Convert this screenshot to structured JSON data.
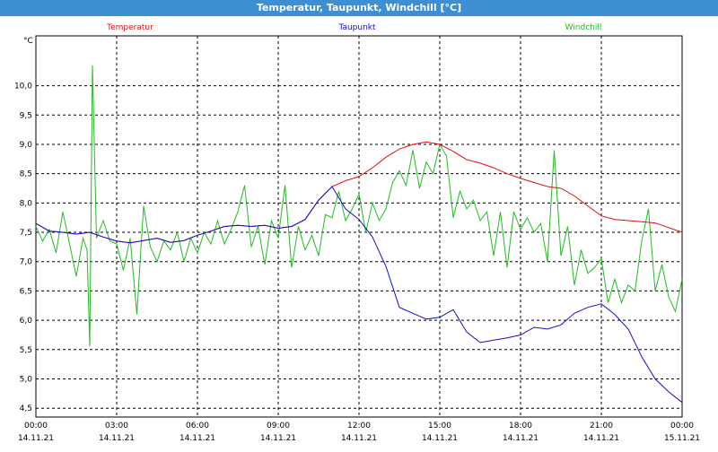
{
  "window": {
    "title": "Temperatur, Taupunkt, Windchill [°C]"
  },
  "chart_data": {
    "type": "line",
    "title": "Temperatur, Taupunkt, Windchill [°C]",
    "ylabel": "°C",
    "xlabel": "",
    "ylim": [
      4.35,
      10.85
    ],
    "xlim": [
      0,
      24
    ],
    "grid": true,
    "legend_placement": "top",
    "y_ticks": [
      "4,5",
      "5,0",
      "5,5",
      "6,0",
      "6,5",
      "7,0",
      "7,5",
      "8,0",
      "8,5",
      "9,0",
      "9,5",
      "10,0"
    ],
    "y_tick_values": [
      4.5,
      5.0,
      5.5,
      6.0,
      6.5,
      7.0,
      7.5,
      8.0,
      8.5,
      9.0,
      9.5,
      10.0
    ],
    "x_ticks": [
      {
        "time": "00:00",
        "date": "14.11.21",
        "value": 0
      },
      {
        "time": "03:00",
        "date": "14.11.21",
        "value": 3
      },
      {
        "time": "06:00",
        "date": "14.11.21",
        "value": 6
      },
      {
        "time": "09:00",
        "date": "14.11.21",
        "value": 9
      },
      {
        "time": "12:00",
        "date": "14.11.21",
        "value": 12
      },
      {
        "time": "15:00",
        "date": "14.11.21",
        "value": 15
      },
      {
        "time": "18:00",
        "date": "14.11.21",
        "value": 18
      },
      {
        "time": "21:00",
        "date": "14.11.21",
        "value": 21
      },
      {
        "time": "00:00",
        "date": "15.11.21",
        "value": 24
      }
    ],
    "series": [
      {
        "name": "Temperatur",
        "color": "#e01010",
        "x": [
          0,
          0.5,
          1,
          1.5,
          2,
          2.5,
          3,
          3.5,
          4,
          4.5,
          5,
          5.5,
          6,
          6.5,
          7,
          7.5,
          8,
          8.5,
          9,
          9.5,
          10,
          10.5,
          11,
          11.5,
          12,
          12.5,
          13,
          13.5,
          14,
          14.5,
          15,
          15.5,
          16,
          16.5,
          17,
          17.5,
          18,
          18.5,
          19,
          19.5,
          20,
          20.5,
          21,
          21.5,
          22,
          22.5,
          23,
          23.5,
          24
        ],
        "y": [
          7.65,
          7.52,
          7.5,
          7.47,
          7.5,
          7.42,
          7.35,
          7.32,
          7.36,
          7.4,
          7.33,
          7.36,
          7.45,
          7.52,
          7.6,
          7.62,
          7.6,
          7.62,
          7.57,
          7.6,
          7.72,
          8.05,
          8.28,
          8.38,
          8.45,
          8.6,
          8.78,
          8.92,
          9.0,
          9.04,
          9.0,
          8.88,
          8.74,
          8.68,
          8.6,
          8.5,
          8.42,
          8.35,
          8.28,
          8.25,
          8.12,
          7.95,
          7.78,
          7.72,
          7.7,
          7.68,
          7.66,
          7.58,
          7.5
        ]
      },
      {
        "name": "Taupunkt",
        "color": "#1010d0",
        "x": [
          0,
          0.5,
          1,
          1.5,
          2,
          2.5,
          3,
          3.5,
          4,
          4.5,
          5,
          5.5,
          6,
          6.5,
          7,
          7.5,
          8,
          8.5,
          9,
          9.5,
          10,
          10.5,
          11,
          11.5,
          12,
          12.5,
          13,
          13.5,
          14,
          14.5,
          15,
          15.5,
          16,
          16.5,
          17,
          17.5,
          18,
          18.5,
          19,
          19.5,
          20,
          20.5,
          21,
          21.5,
          22,
          22.5,
          23,
          23.5,
          24
        ],
        "y": [
          7.65,
          7.52,
          7.5,
          7.47,
          7.5,
          7.42,
          7.35,
          7.32,
          7.36,
          7.4,
          7.33,
          7.36,
          7.45,
          7.52,
          7.6,
          7.62,
          7.6,
          7.62,
          7.57,
          7.6,
          7.72,
          8.05,
          8.28,
          7.9,
          7.72,
          7.42,
          6.92,
          6.22,
          6.12,
          6.02,
          6.05,
          6.18,
          5.8,
          5.62,
          5.66,
          5.7,
          5.75,
          5.88,
          5.85,
          5.92,
          6.12,
          6.22,
          6.28,
          6.1,
          5.85,
          5.38,
          5.0,
          4.78,
          4.6
        ]
      },
      {
        "name": "Windchill",
        "color": "#22bb22",
        "x": [
          0,
          0.25,
          0.5,
          0.75,
          1,
          1.25,
          1.5,
          1.75,
          1.9,
          2.0,
          2.1,
          2.25,
          2.5,
          2.75,
          3,
          3.25,
          3.5,
          3.75,
          4,
          4.25,
          4.5,
          4.75,
          5,
          5.25,
          5.5,
          5.75,
          6,
          6.25,
          6.5,
          6.75,
          7,
          7.25,
          7.5,
          7.75,
          8,
          8.25,
          8.5,
          8.75,
          9,
          9.25,
          9.5,
          9.75,
          10,
          10.25,
          10.5,
          10.75,
          11,
          11.25,
          11.5,
          11.75,
          12,
          12.25,
          12.5,
          12.75,
          13,
          13.25,
          13.5,
          13.75,
          14,
          14.25,
          14.5,
          14.75,
          15,
          15.25,
          15.5,
          15.75,
          16,
          16.25,
          16.5,
          16.75,
          17,
          17.25,
          17.5,
          17.75,
          18,
          18.25,
          18.5,
          18.75,
          19,
          19.25,
          19.5,
          19.75,
          20,
          20.25,
          20.5,
          20.75,
          21,
          21.25,
          21.5,
          21.75,
          22,
          22.25,
          22.5,
          22.75,
          23,
          23.25,
          23.5,
          23.75,
          24
        ],
        "y": [
          7.6,
          7.35,
          7.55,
          7.15,
          7.85,
          7.3,
          6.75,
          7.4,
          7.2,
          5.55,
          10.35,
          7.4,
          7.7,
          7.35,
          7.3,
          6.85,
          7.4,
          6.1,
          7.95,
          7.25,
          7.0,
          7.35,
          7.2,
          7.5,
          7.0,
          7.4,
          7.15,
          7.5,
          7.3,
          7.7,
          7.3,
          7.55,
          7.85,
          8.3,
          7.25,
          7.6,
          6.95,
          7.7,
          7.4,
          8.3,
          6.9,
          7.6,
          7.2,
          7.45,
          7.1,
          7.8,
          7.75,
          8.2,
          7.7,
          7.9,
          8.15,
          7.5,
          8.0,
          7.7,
          7.9,
          8.35,
          8.55,
          8.3,
          8.9,
          8.25,
          8.7,
          8.5,
          9.0,
          8.8,
          7.75,
          8.2,
          7.9,
          8.05,
          7.7,
          7.85,
          7.1,
          7.85,
          6.9,
          7.85,
          7.55,
          7.75,
          7.5,
          7.65,
          7.0,
          8.9,
          7.1,
          7.6,
          6.6,
          7.2,
          6.8,
          6.9,
          7.05,
          6.3,
          6.7,
          6.3,
          6.6,
          6.5,
          7.35,
          7.9,
          6.5,
          6.95,
          6.4,
          6.15,
          6.7
        ]
      }
    ]
  }
}
